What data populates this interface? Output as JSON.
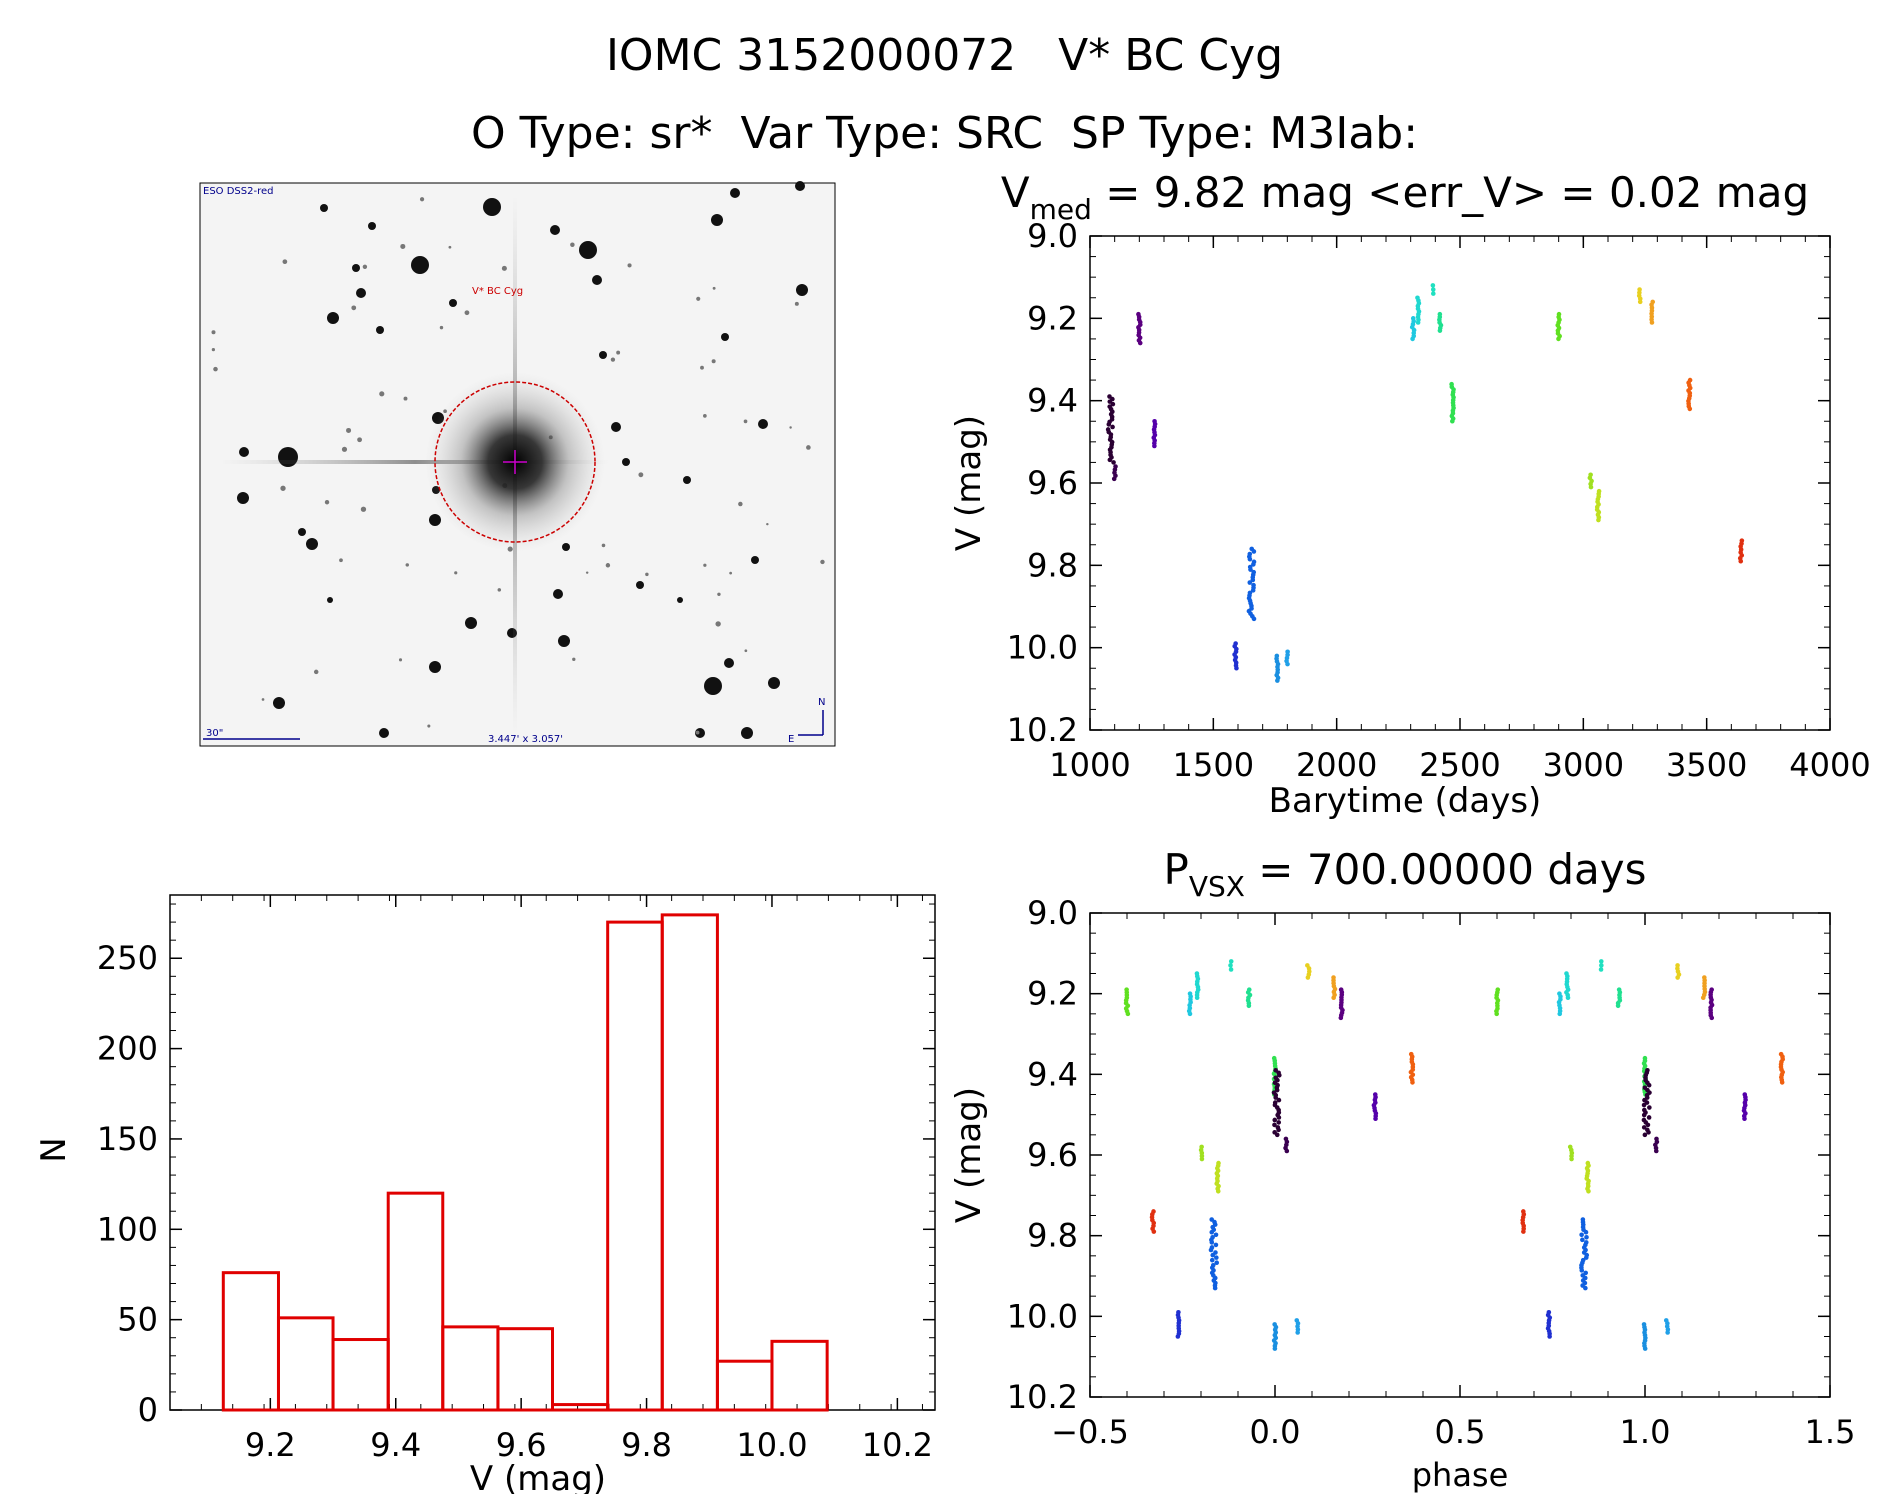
{
  "header": {
    "line1": "IOMC 3152000072   V* BC Cyg",
    "line2": "O Type: sr*  Var Type: SRC  SP Type: M3Iab:"
  },
  "image_panel": {
    "survey_label": "ESO DSS2-red",
    "target_label": "V* BC Cyg",
    "scale_label": "30\"",
    "size_label": "3.447' x 3.057'",
    "north_label": "N",
    "east_label": "E"
  },
  "colors": {
    "histogram": "#e00000",
    "target_circle": "#cc0000",
    "label_blue": "#00008b"
  },
  "chart_data": [
    {
      "id": "lightcurve",
      "type": "scatter",
      "title_main": "V",
      "title_sub": "med",
      "title_rest": " = 9.82 mag <err_V> = 0.02 mag",
      "xlabel": "Barytime (days)",
      "ylabel": "V (mag)",
      "xlim": [
        1000,
        4000
      ],
      "ylim": [
        10.2,
        9.0
      ],
      "xticks": [
        1000,
        1500,
        2000,
        2500,
        3000,
        3500,
        4000
      ],
      "xtick_labels": [
        "1000",
        "1500",
        "2000",
        "2500",
        "3000",
        "3500",
        "4000"
      ],
      "yticks": [
        9.0,
        9.2,
        9.4,
        9.6,
        9.8,
        10.0,
        10.2
      ],
      "ytick_labels": [
        "9.0",
        "9.2",
        "9.4",
        "9.6",
        "9.8",
        "10.0",
        "10.2"
      ],
      "groups": [
        {
          "x": 1085,
          "y": [
            9.39,
            9.55
          ],
          "color": "#2a0033"
        },
        {
          "x": 1100,
          "y": [
            9.56,
            9.59
          ],
          "color": "#3a0050"
        },
        {
          "x": 1200,
          "y": [
            9.19,
            9.26
          ],
          "color": "#5b0080"
        },
        {
          "x": 1260,
          "y": [
            9.45,
            9.51
          ],
          "color": "#5500aa"
        },
        {
          "x": 1590,
          "y": [
            9.99,
            10.05
          ],
          "color": "#2030d0"
        },
        {
          "x": 1655,
          "y": [
            9.76,
            9.93
          ],
          "color": "#1060e0"
        },
        {
          "x": 1760,
          "y": [
            10.02,
            10.08
          ],
          "color": "#1a8fe0"
        },
        {
          "x": 1800,
          "y": [
            10.01,
            10.04
          ],
          "color": "#20a0e8"
        },
        {
          "x": 2310,
          "y": [
            9.2,
            9.25
          ],
          "color": "#20c8e0"
        },
        {
          "x": 2330,
          "y": [
            9.15,
            9.21
          ],
          "color": "#20d8d0"
        },
        {
          "x": 2390,
          "y": [
            9.12,
            9.14
          ],
          "color": "#20e0c0"
        },
        {
          "x": 2420,
          "y": [
            9.19,
            9.23
          ],
          "color": "#20e090"
        },
        {
          "x": 2470,
          "y": [
            9.36,
            9.45
          ],
          "color": "#30e050"
        },
        {
          "x": 2900,
          "y": [
            9.19,
            9.25
          ],
          "color": "#60e020"
        },
        {
          "x": 3030,
          "y": [
            9.58,
            9.61
          ],
          "color": "#a0e020"
        },
        {
          "x": 3060,
          "y": [
            9.62,
            9.69
          ],
          "color": "#c0e020"
        },
        {
          "x": 3230,
          "y": [
            9.13,
            9.16
          ],
          "color": "#e8d020"
        },
        {
          "x": 3280,
          "y": [
            9.16,
            9.21
          ],
          "color": "#f0a020"
        },
        {
          "x": 3430,
          "y": [
            9.35,
            9.42
          ],
          "color": "#f06010"
        },
        {
          "x": 3640,
          "y": [
            9.74,
            9.79
          ],
          "color": "#e03010"
        }
      ]
    },
    {
      "id": "phased",
      "type": "scatter",
      "title_main": "P",
      "title_sub": "VSX",
      "title_rest": " = 700.00000 days",
      "xlabel": "phase",
      "ylabel": "V (mag)",
      "xlim": [
        -0.5,
        1.5
      ],
      "ylim": [
        10.2,
        9.0
      ],
      "xticks": [
        -0.5,
        0.0,
        0.5,
        1.0,
        1.5
      ],
      "xtick_labels": [
        "−0.5",
        "0.0",
        "0.5",
        "1.0",
        "1.5"
      ],
      "yticks": [
        9.0,
        9.2,
        9.4,
        9.6,
        9.8,
        10.0,
        10.2
      ],
      "ytick_labels": [
        "9.0",
        "9.2",
        "9.4",
        "9.6",
        "9.8",
        "10.0",
        "10.2"
      ],
      "groups": [
        {
          "x": -0.4,
          "y": [
            9.19,
            9.25
          ],
          "color": "#60e020"
        },
        {
          "x": -0.33,
          "y": [
            9.74,
            9.79
          ],
          "color": "#e03010"
        },
        {
          "x": -0.26,
          "y": [
            9.99,
            10.05
          ],
          "color": "#2030d0"
        },
        {
          "x": -0.23,
          "y": [
            9.2,
            9.25
          ],
          "color": "#20c8e0"
        },
        {
          "x": -0.21,
          "y": [
            9.15,
            9.21
          ],
          "color": "#20d8d0"
        },
        {
          "x": -0.2,
          "y": [
            9.58,
            9.61
          ],
          "color": "#a0e020"
        },
        {
          "x": -0.165,
          "y": [
            9.76,
            9.93
          ],
          "color": "#1060e0"
        },
        {
          "x": -0.155,
          "y": [
            9.62,
            9.69
          ],
          "color": "#c0e020"
        },
        {
          "x": -0.12,
          "y": [
            9.12,
            9.14
          ],
          "color": "#20e0c0"
        },
        {
          "x": -0.07,
          "y": [
            9.19,
            9.23
          ],
          "color": "#20e090"
        },
        {
          "x": 0.0,
          "y": [
            9.36,
            9.45
          ],
          "color": "#30e050"
        },
        {
          "x": 0.0,
          "y": [
            10.02,
            10.08
          ],
          "color": "#1a8fe0"
        },
        {
          "x": 0.005,
          "y": [
            9.39,
            9.55
          ],
          "color": "#2a0033"
        },
        {
          "x": 0.03,
          "y": [
            9.56,
            9.59
          ],
          "color": "#3a0050"
        },
        {
          "x": 0.06,
          "y": [
            10.01,
            10.04
          ],
          "color": "#20a0e8"
        },
        {
          "x": 0.09,
          "y": [
            9.13,
            9.16
          ],
          "color": "#e8d020"
        },
        {
          "x": 0.16,
          "y": [
            9.16,
            9.21
          ],
          "color": "#f0a020"
        },
        {
          "x": 0.18,
          "y": [
            9.19,
            9.26
          ],
          "color": "#5b0080"
        },
        {
          "x": 0.27,
          "y": [
            9.45,
            9.51
          ],
          "color": "#5500aa"
        },
        {
          "x": 0.37,
          "y": [
            9.35,
            9.42
          ],
          "color": "#f06010"
        },
        {
          "x": 0.6,
          "y": [
            9.19,
            9.25
          ],
          "color": "#60e020"
        },
        {
          "x": 0.67,
          "y": [
            9.74,
            9.79
          ],
          "color": "#e03010"
        },
        {
          "x": 0.74,
          "y": [
            9.99,
            10.05
          ],
          "color": "#2030d0"
        },
        {
          "x": 0.77,
          "y": [
            9.2,
            9.25
          ],
          "color": "#20c8e0"
        },
        {
          "x": 0.79,
          "y": [
            9.15,
            9.21
          ],
          "color": "#20d8d0"
        },
        {
          "x": 0.8,
          "y": [
            9.58,
            9.61
          ],
          "color": "#a0e020"
        },
        {
          "x": 0.835,
          "y": [
            9.76,
            9.93
          ],
          "color": "#1060e0"
        },
        {
          "x": 0.845,
          "y": [
            9.62,
            9.69
          ],
          "color": "#c0e020"
        },
        {
          "x": 0.88,
          "y": [
            9.12,
            9.14
          ],
          "color": "#20e0c0"
        },
        {
          "x": 0.93,
          "y": [
            9.19,
            9.23
          ],
          "color": "#20e090"
        },
        {
          "x": 1.0,
          "y": [
            9.36,
            9.45
          ],
          "color": "#30e050"
        },
        {
          "x": 1.0,
          "y": [
            10.02,
            10.08
          ],
          "color": "#1a8fe0"
        },
        {
          "x": 1.005,
          "y": [
            9.39,
            9.55
          ],
          "color": "#2a0033"
        },
        {
          "x": 1.03,
          "y": [
            9.56,
            9.59
          ],
          "color": "#3a0050"
        },
        {
          "x": 1.06,
          "y": [
            10.01,
            10.04
          ],
          "color": "#20a0e8"
        },
        {
          "x": 1.09,
          "y": [
            9.13,
            9.16
          ],
          "color": "#e8d020"
        },
        {
          "x": 1.16,
          "y": [
            9.16,
            9.21
          ],
          "color": "#f0a020"
        },
        {
          "x": 1.18,
          "y": [
            9.19,
            9.26
          ],
          "color": "#5b0080"
        },
        {
          "x": 1.27,
          "y": [
            9.45,
            9.51
          ],
          "color": "#5500aa"
        },
        {
          "x": 1.37,
          "y": [
            9.35,
            9.42
          ],
          "color": "#f06010"
        }
      ]
    },
    {
      "id": "histogram",
      "type": "bar",
      "xlabel": "V (mag)",
      "ylabel": "N",
      "xlim": [
        9.04,
        10.26
      ],
      "ylim": [
        0,
        285
      ],
      "xticks": [
        9.2,
        9.4,
        9.6,
        9.8,
        10.0,
        10.2
      ],
      "xtick_labels": [
        "9.2",
        "9.4",
        "9.6",
        "9.8",
        "10.0",
        "10.2"
      ],
      "yticks": [
        0,
        50,
        100,
        150,
        200,
        250
      ],
      "ytick_labels": [
        "0",
        "50",
        "100",
        "150",
        "200",
        "250"
      ],
      "bin_edges": [
        9.125,
        9.213,
        9.3,
        9.388,
        9.475,
        9.563,
        9.65,
        9.738,
        9.825,
        9.913,
        10.0,
        10.088
      ],
      "values": [
        76,
        51,
        39,
        120,
        46,
        45,
        3,
        270,
        274,
        27,
        38
      ]
    }
  ]
}
